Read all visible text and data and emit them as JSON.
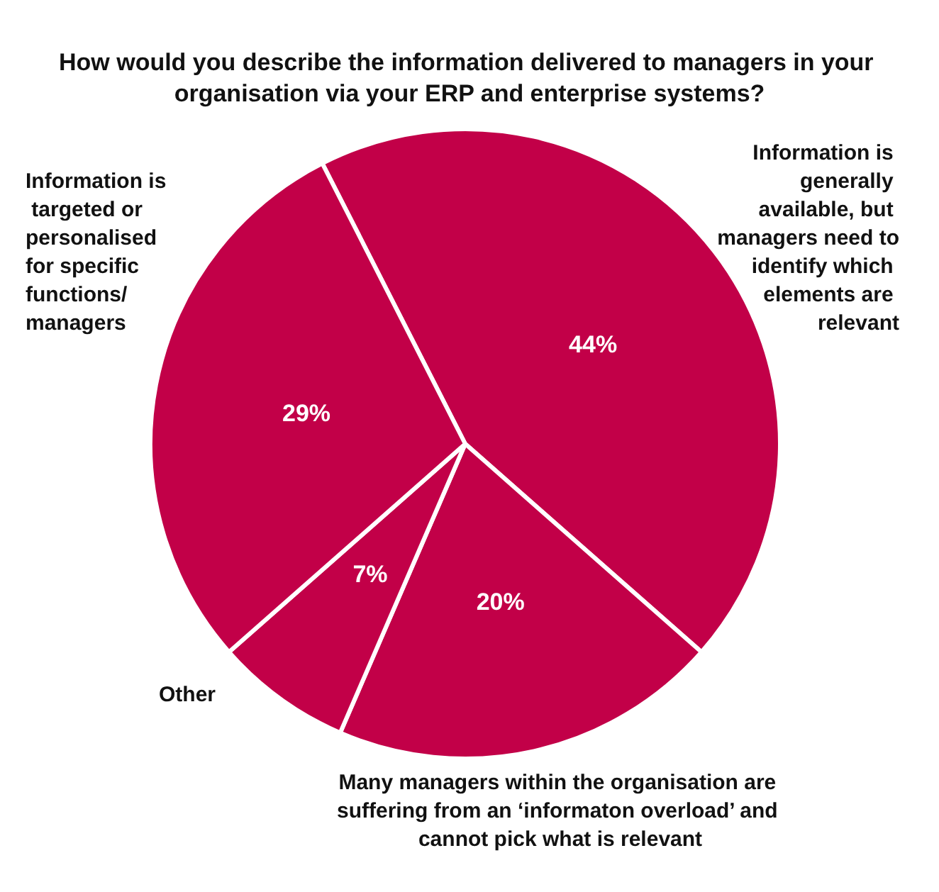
{
  "chart_data": {
    "type": "pie",
    "title": "How would you describe the information delivered to managers in your organisation via your ERP and enterprise systems?",
    "categories": [
      "Information is generally available, but managers need to identify which elements are relevant",
      "Many managers within the organisation are suffering from an ‘informaton overload’ and cannot pick what is relevant",
      "Other",
      "Information is targeted or personalised for specific functions/ managers"
    ],
    "values": [
      44,
      20,
      7,
      29
    ],
    "value_labels": [
      "44%",
      "20%",
      "7%",
      "29%"
    ],
    "colors": [
      "#c20048",
      "#c20048",
      "#c20048",
      "#c20048"
    ],
    "legend": false
  }
}
